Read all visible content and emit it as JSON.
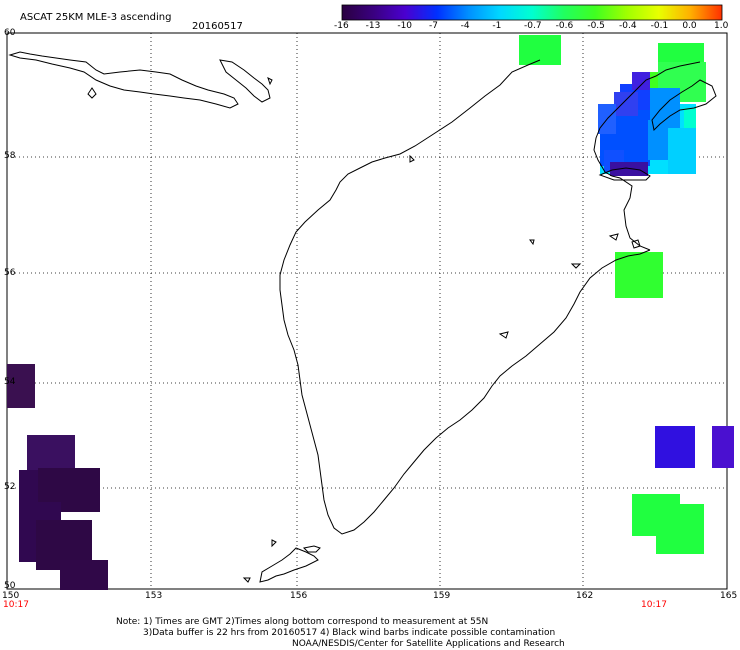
{
  "header": {
    "title": "ASCAT 25KM MLE-3 ascending",
    "date": "20160517"
  },
  "colorbar": {
    "labels": [
      "-16",
      "-13",
      "-10",
      "-7",
      "-4",
      "-1",
      "-0.7",
      "-0.6",
      "-0.5",
      "-0.4",
      "-0.1",
      "0.0",
      "1.0"
    ],
    "colors": [
      "#2a0040",
      "#3a0080",
      "#4a00d0",
      "#0030ff",
      "#0090ff",
      "#00d8ff",
      "#00ffd0",
      "#20ff60",
      "#40ff20",
      "#a0ff00",
      "#e8ff00",
      "#ffb000",
      "#ff3000"
    ]
  },
  "axes": {
    "x_ticks": [
      "150",
      "153",
      "156",
      "159",
      "162",
      "165"
    ],
    "y_ticks": [
      "60",
      "58",
      "56",
      "54",
      "52",
      "50"
    ],
    "time_left": "10:17",
    "time_right": "10:17"
  },
  "notes": {
    "line1": "Note: 1) Times are GMT 2)Times along bottom correspond to measurement at 55N",
    "line2": "3)Data buffer is 22 hrs from 20160517 4) Black wind barbs indicate possible contamination",
    "line3": "NOAA/NESDIS/Center for Satellite Applications and Research"
  }
}
